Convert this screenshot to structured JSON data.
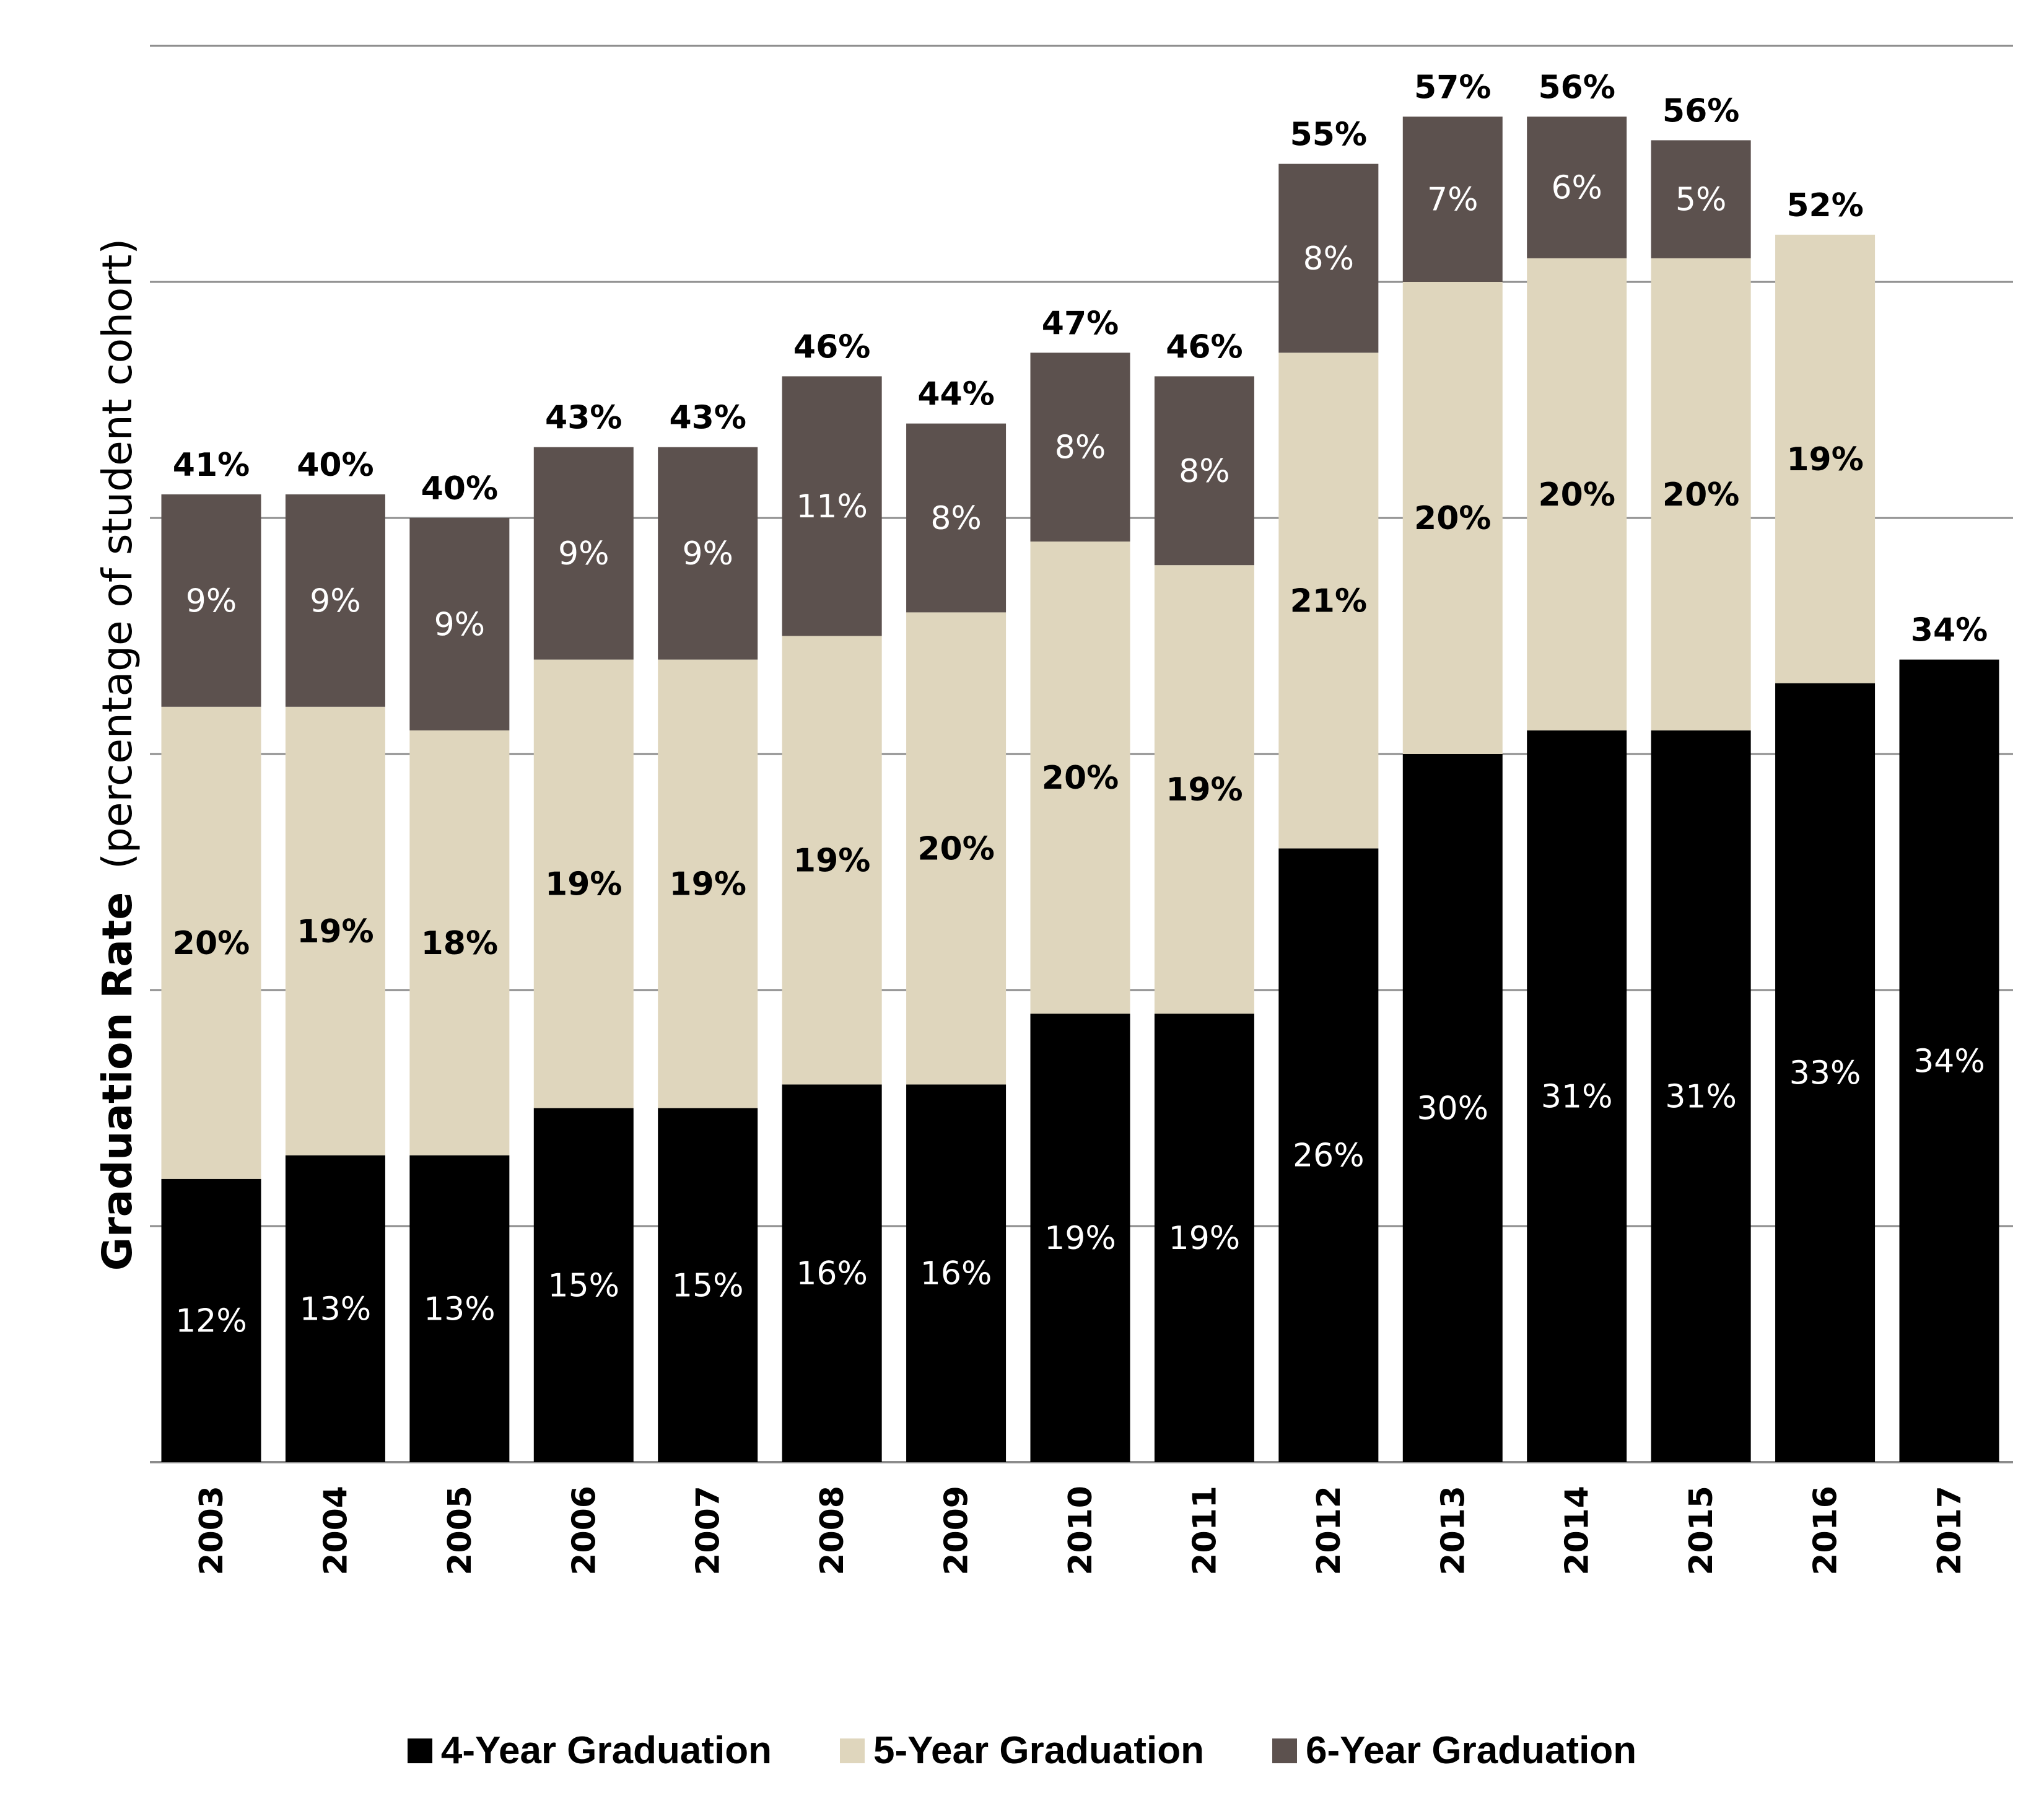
{
  "chart_data": {
    "type": "bar",
    "stacked": true,
    "title": "",
    "xlabel": "",
    "ylabel": "Graduation Rate",
    "ylabel_suffix": "(percentage of student cohort)",
    "ylim": [
      0,
      60
    ],
    "ytick_step": 10,
    "yticks_shown": false,
    "grid": true,
    "legend_position": "bottom",
    "categories": [
      "2003",
      "2004",
      "2005",
      "2006",
      "2007",
      "2008",
      "2009",
      "2010",
      "2011",
      "2012",
      "2013",
      "2014",
      "2015",
      "2016",
      "2017"
    ],
    "series": [
      {
        "name": "4-Year Graduation",
        "color": "#000000",
        "label_color": "#ffffff",
        "values": [
          12,
          13,
          13,
          15,
          15,
          16,
          16,
          19,
          19,
          26,
          30,
          31,
          31,
          33,
          34
        ]
      },
      {
        "name": "5-Year Graduation",
        "color": "#dfd6bd",
        "label_color": "#000000",
        "values": [
          20,
          19,
          18,
          19,
          19,
          19,
          20,
          20,
          19,
          21,
          20,
          20,
          20,
          19,
          null
        ]
      },
      {
        "name": "6-Year Graduation",
        "color": "#5c514e",
        "label_color": "#ffffff",
        "values": [
          9,
          9,
          9,
          9,
          9,
          11,
          8,
          8,
          8,
          8,
          7,
          6,
          5,
          null,
          null
        ]
      }
    ],
    "totals": [
      41,
      40,
      40,
      43,
      43,
      46,
      44,
      47,
      46,
      55,
      57,
      56,
      56,
      52,
      34
    ],
    "value_suffix": "%"
  },
  "colors": {
    "gridline": "#8c8c8c",
    "axis": "#8c8c8c"
  }
}
